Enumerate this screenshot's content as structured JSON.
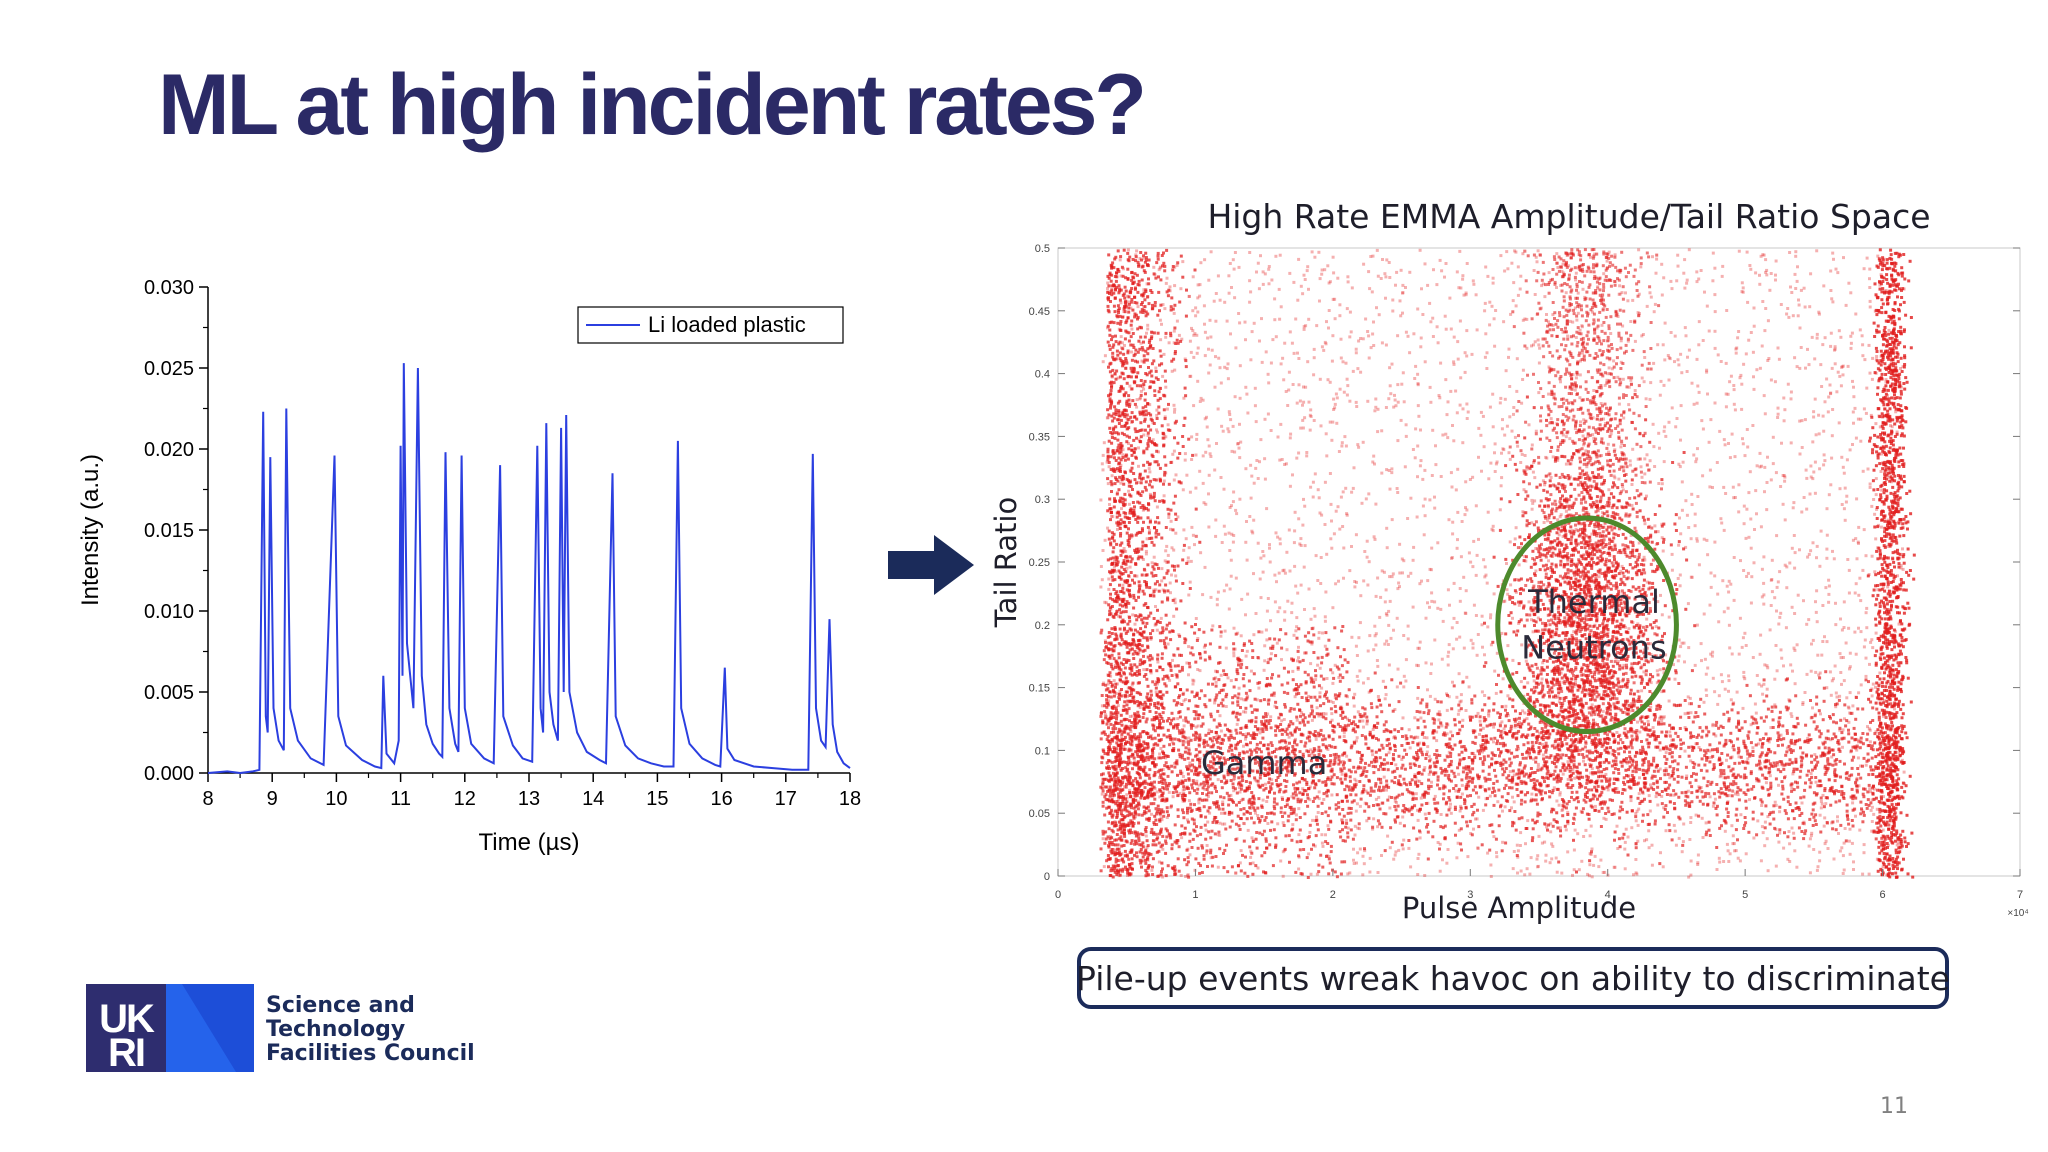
{
  "slide": {
    "title": "ML at high incident rates?",
    "caption": "Pile-up events wreak havoc on ability to discriminate",
    "page_number": "11"
  },
  "logo": {
    "mark_text": "UKRI",
    "org_lines": [
      "Science and",
      "Technology",
      "Facilities Council"
    ],
    "colors": {
      "dark": "#2e2d6f",
      "blue": "#2563eb"
    }
  },
  "arrow": {
    "icon": "right-arrow-icon",
    "color": "#1b2b5a"
  },
  "chart_data": [
    {
      "type": "line",
      "title": "",
      "xlabel": "Time (µs)",
      "ylabel": "Intensity (a.u.)",
      "xlim": [
        8,
        18
      ],
      "ylim": [
        0,
        0.03
      ],
      "x_ticks": [
        "8",
        "9",
        "10",
        "11",
        "12",
        "13",
        "14",
        "15",
        "16",
        "17",
        "18"
      ],
      "y_ticks": [
        "0.000",
        "0.005",
        "0.010",
        "0.015",
        "0.020",
        "0.025",
        "0.030"
      ],
      "legend": {
        "position": "top-right"
      },
      "series": [
        {
          "name": "Li loaded plastic",
          "color": "#2b3fe0",
          "points": [
            [
              8.0,
              0.0
            ],
            [
              8.3,
              0.0001
            ],
            [
              8.5,
              0.0
            ],
            [
              8.7,
              0.0001
            ],
            [
              8.8,
              0.0002
            ],
            [
              8.86,
              0.0223
            ],
            [
              8.9,
              0.0035
            ],
            [
              8.93,
              0.0025
            ],
            [
              8.97,
              0.0195
            ],
            [
              9.02,
              0.004
            ],
            [
              9.1,
              0.002
            ],
            [
              9.18,
              0.0014
            ],
            [
              9.22,
              0.0225
            ],
            [
              9.28,
              0.004
            ],
            [
              9.4,
              0.002
            ],
            [
              9.6,
              0.0009
            ],
            [
              9.8,
              0.0005
            ],
            [
              9.97,
              0.0196
            ],
            [
              10.03,
              0.0035
            ],
            [
              10.15,
              0.0017
            ],
            [
              10.4,
              0.0008
            ],
            [
              10.6,
              0.0004
            ],
            [
              10.7,
              0.0003
            ],
            [
              10.73,
              0.006
            ],
            [
              10.78,
              0.0012
            ],
            [
              10.9,
              0.0006
            ],
            [
              10.97,
              0.002
            ],
            [
              11.0,
              0.0202
            ],
            [
              11.03,
              0.006
            ],
            [
              11.05,
              0.0253
            ],
            [
              11.1,
              0.008
            ],
            [
              11.15,
              0.006
            ],
            [
              11.2,
              0.004
            ],
            [
              11.27,
              0.025
            ],
            [
              11.33,
              0.006
            ],
            [
              11.4,
              0.003
            ],
            [
              11.5,
              0.0018
            ],
            [
              11.6,
              0.0012
            ],
            [
              11.65,
              0.001
            ],
            [
              11.7,
              0.0198
            ],
            [
              11.76,
              0.004
            ],
            [
              11.85,
              0.0018
            ],
            [
              11.9,
              0.0013
            ],
            [
              11.95,
              0.0196
            ],
            [
              12.0,
              0.004
            ],
            [
              12.1,
              0.0018
            ],
            [
              12.3,
              0.0009
            ],
            [
              12.45,
              0.0006
            ],
            [
              12.55,
              0.019
            ],
            [
              12.6,
              0.0035
            ],
            [
              12.75,
              0.0017
            ],
            [
              12.9,
              0.0009
            ],
            [
              13.05,
              0.0007
            ],
            [
              13.13,
              0.0202
            ],
            [
              13.18,
              0.004
            ],
            [
              13.22,
              0.0025
            ],
            [
              13.27,
              0.0216
            ],
            [
              13.32,
              0.005
            ],
            [
              13.38,
              0.003
            ],
            [
              13.45,
              0.002
            ],
            [
              13.5,
              0.0213
            ],
            [
              13.54,
              0.005
            ],
            [
              13.58,
              0.0221
            ],
            [
              13.63,
              0.005
            ],
            [
              13.75,
              0.0025
            ],
            [
              13.9,
              0.0013
            ],
            [
              14.1,
              0.0008
            ],
            [
              14.2,
              0.0006
            ],
            [
              14.3,
              0.0185
            ],
            [
              14.35,
              0.0035
            ],
            [
              14.5,
              0.0017
            ],
            [
              14.7,
              0.0009
            ],
            [
              14.9,
              0.0006
            ],
            [
              15.1,
              0.0004
            ],
            [
              15.25,
              0.0004
            ],
            [
              15.32,
              0.0205
            ],
            [
              15.37,
              0.004
            ],
            [
              15.5,
              0.0018
            ],
            [
              15.7,
              0.0009
            ],
            [
              15.9,
              0.0005
            ],
            [
              15.98,
              0.0004
            ],
            [
              16.05,
              0.0065
            ],
            [
              16.09,
              0.0015
            ],
            [
              16.2,
              0.0008
            ],
            [
              16.5,
              0.0004
            ],
            [
              16.8,
              0.0003
            ],
            [
              17.1,
              0.0002
            ],
            [
              17.35,
              0.0002
            ],
            [
              17.42,
              0.0197
            ],
            [
              17.47,
              0.004
            ],
            [
              17.55,
              0.002
            ],
            [
              17.62,
              0.0016
            ],
            [
              17.68,
              0.0095
            ],
            [
              17.73,
              0.003
            ],
            [
              17.8,
              0.0013
            ],
            [
              17.9,
              0.0006
            ],
            [
              18.0,
              0.0003
            ]
          ]
        }
      ]
    },
    {
      "type": "scatter",
      "title": "High Rate EMMA Amplitude/Tail Ratio Space",
      "xlabel": "Pulse Amplitude",
      "ylabel": "Tail Ratio",
      "x_multiplier": "×10⁴",
      "xlim": [
        0,
        7
      ],
      "ylim": [
        0,
        0.5
      ],
      "x_ticks": [
        "0",
        "1",
        "2",
        "3",
        "4",
        "5",
        "6",
        "7"
      ],
      "y_ticks": [
        "0",
        "0.05",
        "0.1",
        "0.15",
        "0.2",
        "0.25",
        "0.3",
        "0.35",
        "0.4",
        "0.45",
        "0.5"
      ],
      "point_color": "#e11d1d",
      "annotations": [
        {
          "text": "Thermal",
          "x": 3.9,
          "y": 0.218
        },
        {
          "text": "Neutrons",
          "x": 3.9,
          "y": 0.182
        },
        {
          "text": "Gamma",
          "x": 1.5,
          "y": 0.09
        }
      ],
      "highlight_ellipse": {
        "center": [
          3.85,
          0.2
        ],
        "radius_x": 0.65,
        "radius_y": 0.085,
        "color": "#4d8a2c"
      },
      "density_regions": [
        {
          "label": "gamma band",
          "x": [
            0.3,
            6.1
          ],
          "y": [
            0.06,
            0.12
          ]
        },
        {
          "label": "low-amplitude edge",
          "x": [
            0.3,
            0.6
          ],
          "y": [
            0.0,
            0.5
          ]
        },
        {
          "label": "thermal neutron column",
          "x": [
            3.6,
            4.1
          ],
          "y": [
            0.1,
            0.5
          ]
        },
        {
          "label": "saturation edge",
          "x": [
            5.95,
            6.15
          ],
          "y": [
            0.0,
            0.5
          ]
        }
      ]
    }
  ]
}
